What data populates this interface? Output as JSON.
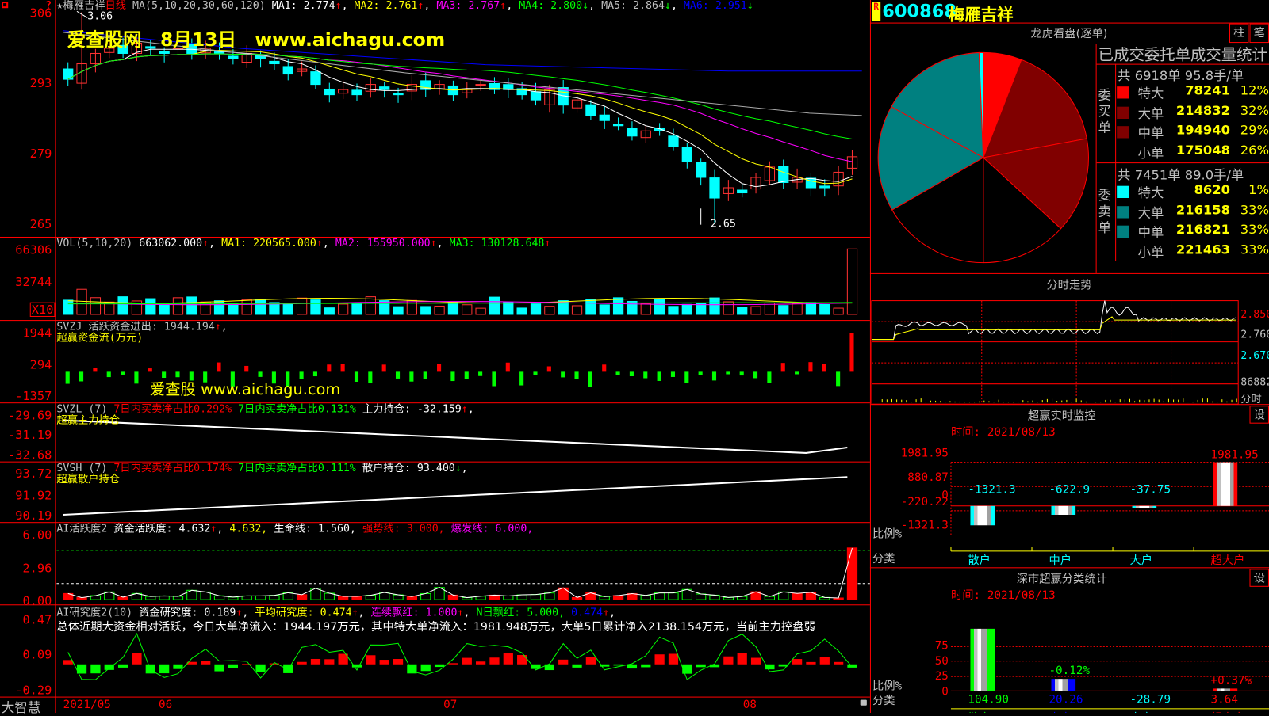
{
  "main": {
    "legend": [
      {
        "t": "★梅雁吉祥",
        "c": "#c0c0c0"
      },
      {
        "t": "日线",
        "c": "#ff0000"
      },
      {
        "t": " MA(5,10,20,30,60,120) ",
        "c": "#c0c0c0"
      },
      {
        "t": "MA1: 2.774",
        "c": "#ffffff"
      },
      {
        "t": "↑",
        "c": "#ff0000"
      },
      {
        "t": ", ",
        "c": "#ffffff"
      },
      {
        "t": "MA2: 2.761",
        "c": "#ffff00"
      },
      {
        "t": "↑",
        "c": "#ff0000"
      },
      {
        "t": ", ",
        "c": "#ffffff"
      },
      {
        "t": "MA3: 2.767",
        "c": "#ff00ff"
      },
      {
        "t": "↑",
        "c": "#ff0000"
      },
      {
        "t": ", ",
        "c": "#ffffff"
      },
      {
        "t": "MA4: 2.800",
        "c": "#00ff00"
      },
      {
        "t": "↓",
        "c": "#00ff00"
      },
      {
        "t": ", ",
        "c": "#ffffff"
      },
      {
        "t": "MA5: 2.864",
        "c": "#c0c0c0"
      },
      {
        "t": "↓",
        "c": "#00ff00"
      },
      {
        "t": ", ",
        "c": "#ffffff"
      },
      {
        "t": "MA6: 2.951",
        "c": "#0000ff"
      },
      {
        "t": "↓",
        "c": "#00ff00"
      }
    ],
    "y_ticks": [
      "306",
      "293",
      "279",
      "265"
    ],
    "high_label": "3.06",
    "low_label": "2.65",
    "watermark": "爱查股网　8月13日　www.aichagu.com",
    "closes": [
      2.93,
      2.96,
      2.98,
      2.99,
      2.98,
      3.0,
      2.99,
      2.98,
      2.99,
      2.98,
      2.99,
      2.98,
      2.97,
      2.98,
      2.97,
      2.96,
      2.94,
      2.95,
      2.92,
      2.9,
      2.91,
      2.9,
      2.92,
      2.91,
      2.9,
      2.92,
      2.91,
      2.92,
      2.9,
      2.91,
      2.92,
      2.91,
      2.91,
      2.9,
      2.89,
      2.91,
      2.88,
      2.89,
      2.86,
      2.85,
      2.84,
      2.82,
      2.83,
      2.83,
      2.8,
      2.77,
      2.74,
      2.7,
      2.72,
      2.71,
      2.74,
      2.76,
      2.73,
      2.74,
      2.72,
      2.72,
      2.75,
      2.78
    ],
    "price_high": 3.06,
    "price_low": 2.65
  },
  "vol": {
    "legend": [
      {
        "t": "VOL(5,10,20) ",
        "c": "#c0c0c0"
      },
      {
        "t": "663062.000",
        "c": "#ffffff"
      },
      {
        "t": "↑",
        "c": "#ff0000"
      },
      {
        "t": ", ",
        "c": "#ffffff"
      },
      {
        "t": "MA1: 220565.000",
        "c": "#ffff00"
      },
      {
        "t": "↑",
        "c": "#ff0000"
      },
      {
        "t": ", ",
        "c": "#ffffff"
      },
      {
        "t": "MA2: 155950.000",
        "c": "#ff00ff"
      },
      {
        "t": "↑",
        "c": "#ff0000"
      },
      {
        "t": ", ",
        "c": "#ffffff"
      },
      {
        "t": "MA3: 130128.648",
        "c": "#00ff00"
      },
      {
        "t": "↑",
        "c": "#ff0000"
      }
    ],
    "y_ticks": [
      "66306",
      "32744"
    ],
    "unit_badge": "X10"
  },
  "svzj": {
    "legend": [
      {
        "t": "SVZJ  活跃资金进出: 1944.194",
        "c": "#c0c0c0"
      },
      {
        "t": "↑",
        "c": "#ff0000"
      },
      {
        "t": ",",
        "c": "#ffffff"
      }
    ],
    "subtitle": "超赢资金流(万元)",
    "y_ticks": [
      "1944",
      "294",
      "-1357"
    ],
    "watermark": "爱查股 www.aichagu.com"
  },
  "svzl": {
    "legend": [
      {
        "t": "SVZL (7) ",
        "c": "#c0c0c0"
      },
      {
        "t": "7日内买卖净占比0.292%",
        "c": "#ff0000"
      },
      {
        "t": " 7日内买卖净占比0.131%",
        "c": "#00ff00"
      },
      {
        "t": " 主力持仓: -32.159",
        "c": "#ffffff"
      },
      {
        "t": "↑",
        "c": "#ff0000"
      },
      {
        "t": ",",
        "c": "#ffffff"
      }
    ],
    "subtitle": "超赢主力持仓",
    "y_ticks": [
      "-29.69",
      "-31.19",
      "-32.68"
    ]
  },
  "svsh": {
    "legend": [
      {
        "t": "SVSH (7) ",
        "c": "#c0c0c0"
      },
      {
        "t": "7日内买卖净占比0.174%",
        "c": "#ff0000"
      },
      {
        "t": " 7日内买卖净占比0.111%",
        "c": "#00ff00"
      },
      {
        "t": " 散户持仓: 93.400",
        "c": "#ffffff"
      },
      {
        "t": "↓",
        "c": "#00ff00"
      },
      {
        "t": ",",
        "c": "#ffffff"
      }
    ],
    "subtitle": "超赢散户持仓",
    "y_ticks": [
      "93.72",
      "91.92",
      "90.19"
    ]
  },
  "aihy": {
    "legend": [
      {
        "t": "AI活跃度2 ",
        "c": "#c0c0c0"
      },
      {
        "t": "资金活跃度: 4.632",
        "c": "#ffffff"
      },
      {
        "t": "↑",
        "c": "#ff0000"
      },
      {
        "t": ", ",
        "c": "#ffffff"
      },
      {
        "t": "4.632, ",
        "c": "#ffff00"
      },
      {
        "t": "生命线: 1.560, ",
        "c": "#ffffff"
      },
      {
        "t": "强势线: 3.000, ",
        "c": "#ff0000"
      },
      {
        "t": "爆发线: 6.000,",
        "c": "#ff00ff"
      }
    ],
    "y_ticks": [
      "6.00",
      "2.96",
      "0.00"
    ]
  },
  "aiyj": {
    "legend": [
      {
        "t": "AI研究度2(10) ",
        "c": "#c0c0c0"
      },
      {
        "t": "资金研究度: 0.189",
        "c": "#ffffff"
      },
      {
        "t": "↑",
        "c": "#ff0000"
      },
      {
        "t": ", ",
        "c": "#ffffff"
      },
      {
        "t": "平均研究度: 0.474",
        "c": "#ffff00"
      },
      {
        "t": "↑",
        "c": "#ff0000"
      },
      {
        "t": ", ",
        "c": "#ffffff"
      },
      {
        "t": "连续飘红: 1.000",
        "c": "#ff00ff"
      },
      {
        "t": "↑",
        "c": "#ff0000"
      },
      {
        "t": ", ",
        "c": "#ffffff"
      },
      {
        "t": "N日飘红: 5.000, ",
        "c": "#00ff00"
      },
      {
        "t": "0.474",
        "c": "#0000ff"
      },
      {
        "t": "↑",
        "c": "#ff0000"
      },
      {
        "t": ",",
        "c": "#ffffff"
      }
    ],
    "comment": "总体近期大资金相对活跃，今日大单净流入：1944.197万元，其中特大单净流入：1981.948万元，大单5日累计净入2138.154万元，当前主力控盘弱",
    "y_ticks": [
      "0.47",
      "0.09",
      "-0.29"
    ]
  },
  "xaxis": {
    "brand": "大智慧",
    "labels": [
      "2021/05",
      "06",
      "07",
      "08"
    ]
  },
  "stock": {
    "badge": "R",
    "code": "600868",
    "name": "梅雁吉祥"
  },
  "dragon": {
    "title": "龙虎看盘(逐单)",
    "buttons": [
      "柱",
      "笔"
    ],
    "table_title": "已成交委托单成交量统计",
    "buy": {
      "side": "委买单",
      "summary": "共 6918单 95.8手/单",
      "rows": [
        {
          "label": "特大",
          "value": 78241,
          "pct": "12%",
          "color": "#ff0000"
        },
        {
          "label": "大单",
          "value": 214832,
          "pct": "32%",
          "color": "#800000"
        },
        {
          "label": "中单",
          "value": 194940,
          "pct": "29%",
          "color": "#800000"
        },
        {
          "label": "小单",
          "value": 175048,
          "pct": "26%",
          "color": "#000000"
        }
      ]
    },
    "sell": {
      "side": "委卖单",
      "summary": "共 7451单 89.0手/单",
      "rows": [
        {
          "label": "特大",
          "value": 8620,
          "pct": "1%",
          "color": "#00ffff"
        },
        {
          "label": "大单",
          "value": 216158,
          "pct": "33%",
          "color": "#008080"
        },
        {
          "label": "中单",
          "value": 216821,
          "pct": "33%",
          "color": "#008080"
        },
        {
          "label": "小单",
          "value": 221463,
          "pct": "33%",
          "color": "#000000"
        }
      ]
    }
  },
  "intraday": {
    "title": "分时走势",
    "y_labels": [
      "2.850",
      "2.760",
      "2.670",
      "86882",
      "分时"
    ]
  },
  "monitor": {
    "title": "超赢实时监控",
    "time": "时间: 2021/08/13",
    "y_ticks": [
      "1981.95",
      "880.87",
      "0",
      "-220.22",
      "-1321.3"
    ],
    "ratio_label": "比例%",
    "cat_label": "分类",
    "bars": [
      {
        "cat": "散户",
        "value": -1321.3,
        "label": "-1321.3",
        "color": "#00ffff"
      },
      {
        "cat": "中户",
        "value": -622.9,
        "label": "-622.9",
        "color": "#00ffff"
      },
      {
        "cat": "大户",
        "value": -37.75,
        "label": "-37.75",
        "color": "#00ffff"
      },
      {
        "cat": "超大户",
        "value": 1981.95,
        "label": "1981.95",
        "color": "#ff0000"
      }
    ]
  },
  "stats": {
    "title": "深市超赢分类统计",
    "time": "时间: 2021/08/13",
    "y_ticks": [
      "75",
      "50",
      "25",
      "0"
    ],
    "ratio_label": "比例%",
    "cat_label": "分类",
    "bars": [
      {
        "cat": "散户",
        "value": 104.9,
        "value_label": "104.90",
        "change": "",
        "color": "#00ff00"
      },
      {
        "cat": "中户",
        "value": 20.26,
        "value_label": "20.26",
        "change": "-0.12%",
        "color": "#0000ff"
      },
      {
        "cat": "大户",
        "value": -28.79,
        "value_label": "-28.79",
        "change": "",
        "color": "#00ffff"
      },
      {
        "cat": "超大户",
        "value": 3.64,
        "value_label": "3.64",
        "change": "+0.37%",
        "color": "#ff0000"
      }
    ],
    "settings_button": "设"
  },
  "monitor_settings_button": "设"
}
